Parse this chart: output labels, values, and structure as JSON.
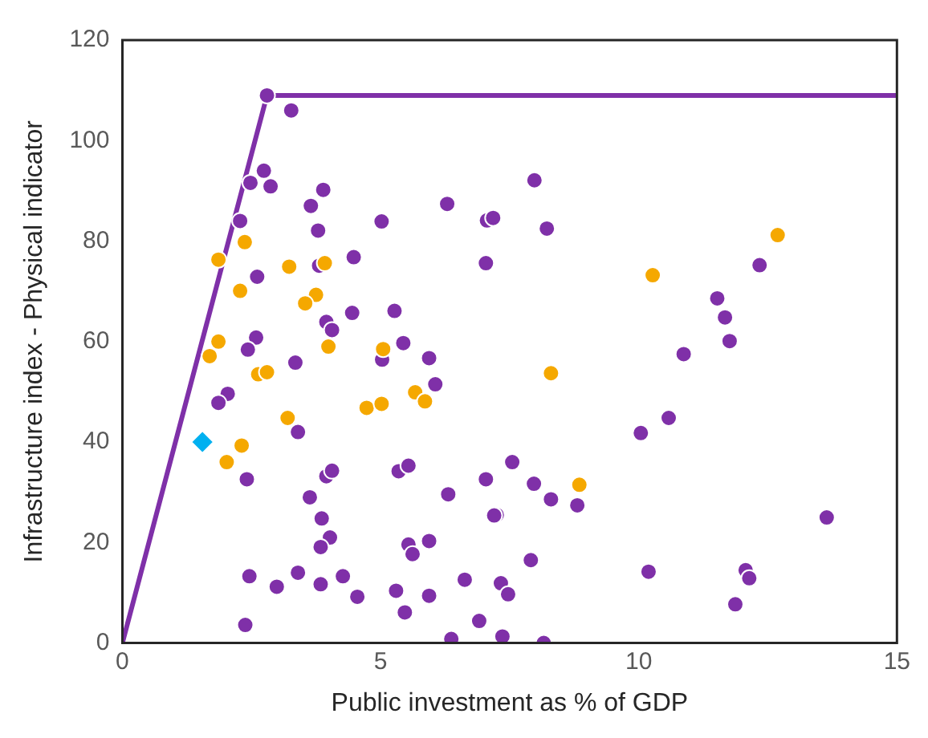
{
  "chart_data": {
    "type": "scatter",
    "xlabel": "Public investment as % of GDP",
    "ylabel": "Infrastructure index - Physical indicator",
    "xlim": [
      0,
      15
    ],
    "xticks": [
      0,
      5,
      10,
      15
    ],
    "ylim": [
      0,
      120
    ],
    "yticks": [
      0,
      20,
      40,
      60,
      80,
      100,
      120
    ],
    "grid": false,
    "legend": false,
    "series": [
      {
        "type": "line",
        "color": "#7f30a8",
        "marker": "none",
        "x": [
          0,
          2.8,
          15
        ],
        "values": [
          0,
          109,
          109
        ]
      },
      {
        "type": "scatter",
        "color": "#7f30a8",
        "marker": "circle",
        "x": [
          2.8,
          3.27,
          2.74,
          2.48,
          2.87,
          3.89,
          3.65,
          6.29,
          5.02,
          7.06,
          7.18,
          2.28,
          3.79,
          4.48,
          7.04,
          3.81,
          2.61,
          4.45,
          5.27,
          3.95,
          4.06,
          2.59,
          2.43,
          5.44,
          7.98,
          8.22,
          12.34,
          11.52,
          11.67,
          11.76,
          10.87,
          10.58,
          10.04,
          7.55,
          7.97,
          8.3,
          8.81,
          7.25,
          13.64,
          7.91,
          10.19,
          12.07,
          12.14,
          11.87,
          7.33,
          7.47,
          7.36,
          8.16,
          3.35,
          5.03,
          5.94,
          6.06,
          2.04,
          1.86,
          3.4,
          2.41,
          3.95,
          4.06,
          5.35,
          5.54,
          7.04,
          3.63,
          6.31,
          3.86,
          7.2,
          4.02,
          3.84,
          5.54,
          5.62,
          5.94,
          2.46,
          2.99,
          3.4,
          3.84,
          4.27,
          4.55,
          5.3,
          5.94,
          5.47,
          6.63,
          6.91,
          6.37,
          2.38
        ],
        "values": [
          109,
          106,
          94,
          91.6,
          90.9,
          90.2,
          87,
          87.4,
          83.9,
          84.1,
          84.6,
          84,
          82.1,
          76.8,
          75.6,
          75.1,
          72.9,
          65.7,
          66.1,
          63.9,
          62.3,
          60.8,
          58.4,
          59.7,
          92.1,
          82.5,
          75.2,
          68.6,
          64.8,
          60.1,
          57.5,
          44.8,
          41.8,
          36,
          31.7,
          28.6,
          27.4,
          25.5,
          25,
          16.5,
          14.2,
          14.5,
          12.9,
          7.7,
          11.9,
          9.7,
          1.3,
          0,
          55.8,
          56.4,
          56.7,
          51.5,
          49.6,
          47.8,
          42,
          32.6,
          33.2,
          34.3,
          34.2,
          35.3,
          32.6,
          29,
          29.6,
          24.8,
          25.4,
          21,
          19.1,
          19.6,
          17.7,
          20.3,
          13.3,
          11.2,
          14,
          11.7,
          13.3,
          9.2,
          10.4,
          9.4,
          6.1,
          12.6,
          4.4,
          0.8,
          3.6
        ]
      },
      {
        "type": "scatter",
        "color": "#f5a800",
        "marker": "circle",
        "x": [
          2.37,
          1.86,
          3.23,
          3.92,
          2.28,
          3.75,
          3.54,
          1.86,
          3.99,
          5.05,
          10.27,
          12.69,
          8.3,
          8.85,
          1.69,
          2.63,
          2.8,
          5.67,
          5.86,
          4.73,
          5.02,
          3.2,
          2.31,
          2.02
        ],
        "values": [
          79.8,
          76.3,
          74.9,
          75.6,
          70.1,
          69.3,
          67.6,
          60,
          59,
          58.5,
          73.2,
          81.2,
          53.7,
          31.5,
          57.1,
          53.5,
          53.9,
          49.9,
          48.1,
          46.8,
          47.6,
          44.8,
          39.3,
          36
        ]
      },
      {
        "type": "scatter",
        "color": "#00b0f0",
        "marker": "diamond",
        "x": [
          1.55
        ],
        "values": [
          40
        ]
      }
    ]
  }
}
